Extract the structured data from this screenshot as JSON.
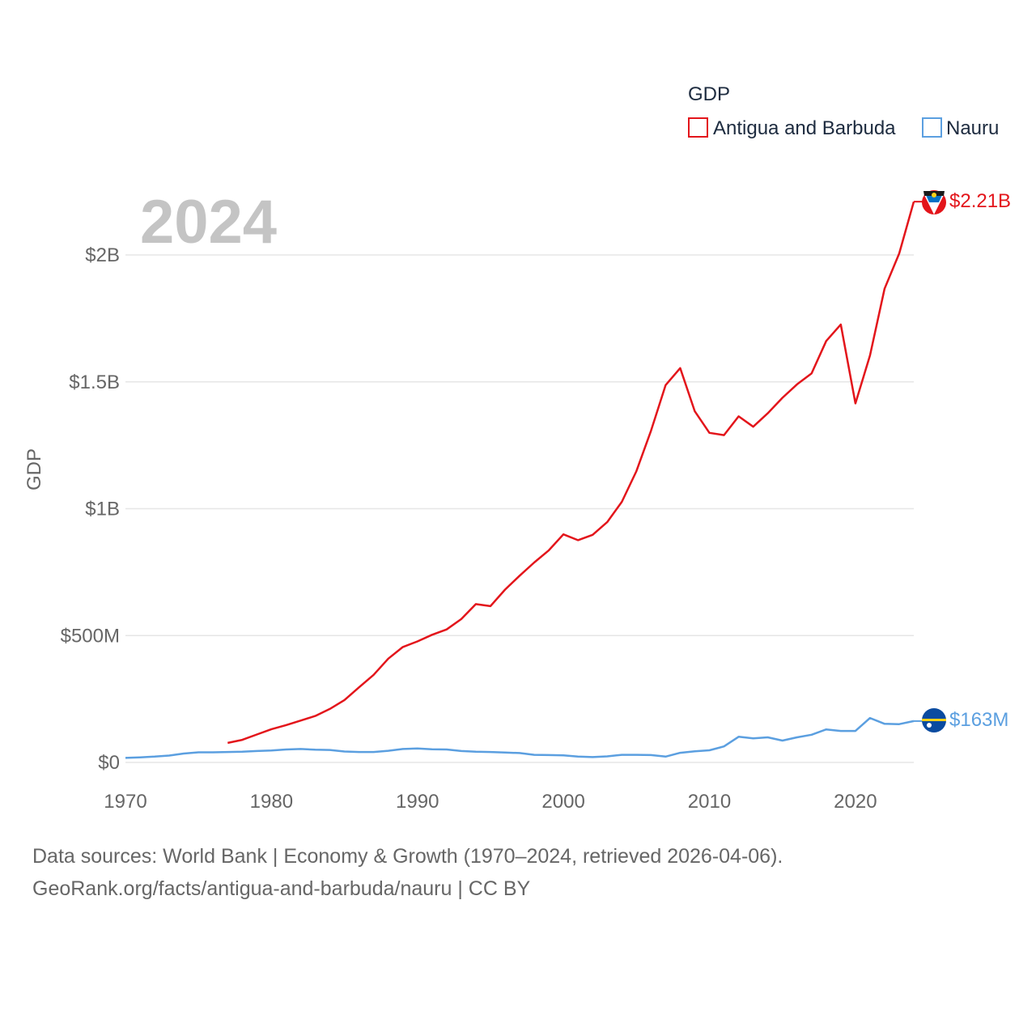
{
  "chart_data": {
    "type": "line",
    "legend_title": "GDP",
    "ylabel": "GDP",
    "year_label": "2024",
    "xlim": [
      1970,
      2024
    ],
    "ylim": [
      0,
      2300000000
    ],
    "x_ticks": [
      1970,
      1980,
      1990,
      2000,
      2010,
      2020
    ],
    "y_ticks": [
      {
        "value": 0,
        "label": "$0"
      },
      {
        "value": 500000000,
        "label": "$500M"
      },
      {
        "value": 1000000000,
        "label": "$1B"
      },
      {
        "value": 1500000000,
        "label": "$1.5B"
      },
      {
        "value": 2000000000,
        "label": "$2B"
      }
    ],
    "series": [
      {
        "name": "Antigua and Barbuda",
        "color": "#e3151b",
        "end_label": "$2.21B",
        "x": [
          1977,
          1978,
          1979,
          1980,
          1981,
          1982,
          1983,
          1984,
          1985,
          1986,
          1987,
          1988,
          1989,
          1990,
          1991,
          1992,
          1993,
          1994,
          1995,
          1996,
          1997,
          1998,
          1999,
          2000,
          2001,
          2002,
          2003,
          2004,
          2005,
          2006,
          2007,
          2008,
          2009,
          2010,
          2011,
          2012,
          2013,
          2014,
          2015,
          2016,
          2017,
          2018,
          2019,
          2020,
          2021,
          2022,
          2023,
          2024
        ],
        "values": [
          77000000,
          89000000,
          110000000,
          131000000,
          147000000,
          165000000,
          183000000,
          211000000,
          246000000,
          296000000,
          345000000,
          409000000,
          455000000,
          477000000,
          503000000,
          524000000,
          565000000,
          624000000,
          616000000,
          681000000,
          736000000,
          788000000,
          836000000,
          899000000,
          876000000,
          897000000,
          947000000,
          1027000000,
          1148000000,
          1307000000,
          1487000000,
          1554000000,
          1384000000,
          1299000000,
          1290000000,
          1364000000,
          1323000000,
          1376000000,
          1437000000,
          1490000000,
          1533000000,
          1661000000,
          1726000000,
          1415000000,
          1604000000,
          1867000000,
          2006000000,
          2210000000
        ]
      },
      {
        "name": "Nauru",
        "color": "#5b9fe0",
        "end_label": "$163M",
        "x": [
          1970,
          1971,
          1972,
          1973,
          1974,
          1975,
          1976,
          1977,
          1978,
          1979,
          1980,
          1981,
          1982,
          1983,
          1984,
          1985,
          1986,
          1987,
          1988,
          1989,
          1990,
          1991,
          1992,
          1993,
          1994,
          1995,
          1996,
          1997,
          1998,
          1999,
          2000,
          2001,
          2002,
          2003,
          2004,
          2005,
          2006,
          2007,
          2008,
          2009,
          2010,
          2011,
          2012,
          2013,
          2014,
          2015,
          2016,
          2017,
          2018,
          2019,
          2020,
          2021,
          2022,
          2023,
          2024
        ],
        "values": [
          18000000,
          20000000,
          23000000,
          27000000,
          35000000,
          40000000,
          40000000,
          41000000,
          42000000,
          45000000,
          47000000,
          51000000,
          53000000,
          50000000,
          49000000,
          43000000,
          41000000,
          41000000,
          46000000,
          53000000,
          55000000,
          52000000,
          51000000,
          45000000,
          42000000,
          41000000,
          39000000,
          37000000,
          30000000,
          29000000,
          28000000,
          23000000,
          21000000,
          24000000,
          30000000,
          30000000,
          29000000,
          23000000,
          38000000,
          44000000,
          48000000,
          63000000,
          101000000,
          95000000,
          99000000,
          86000000,
          99000000,
          109000000,
          130000000,
          124000000,
          124000000,
          175000000,
          152000000,
          151000000,
          163000000
        ]
      }
    ]
  },
  "source_line_1": "Data sources: World Bank | Economy & Growth (1970–2024, retrieved 2026-04-06).",
  "source_line_2": "GeoRank.org/facts/antigua-and-barbuda/nauru | CC BY"
}
